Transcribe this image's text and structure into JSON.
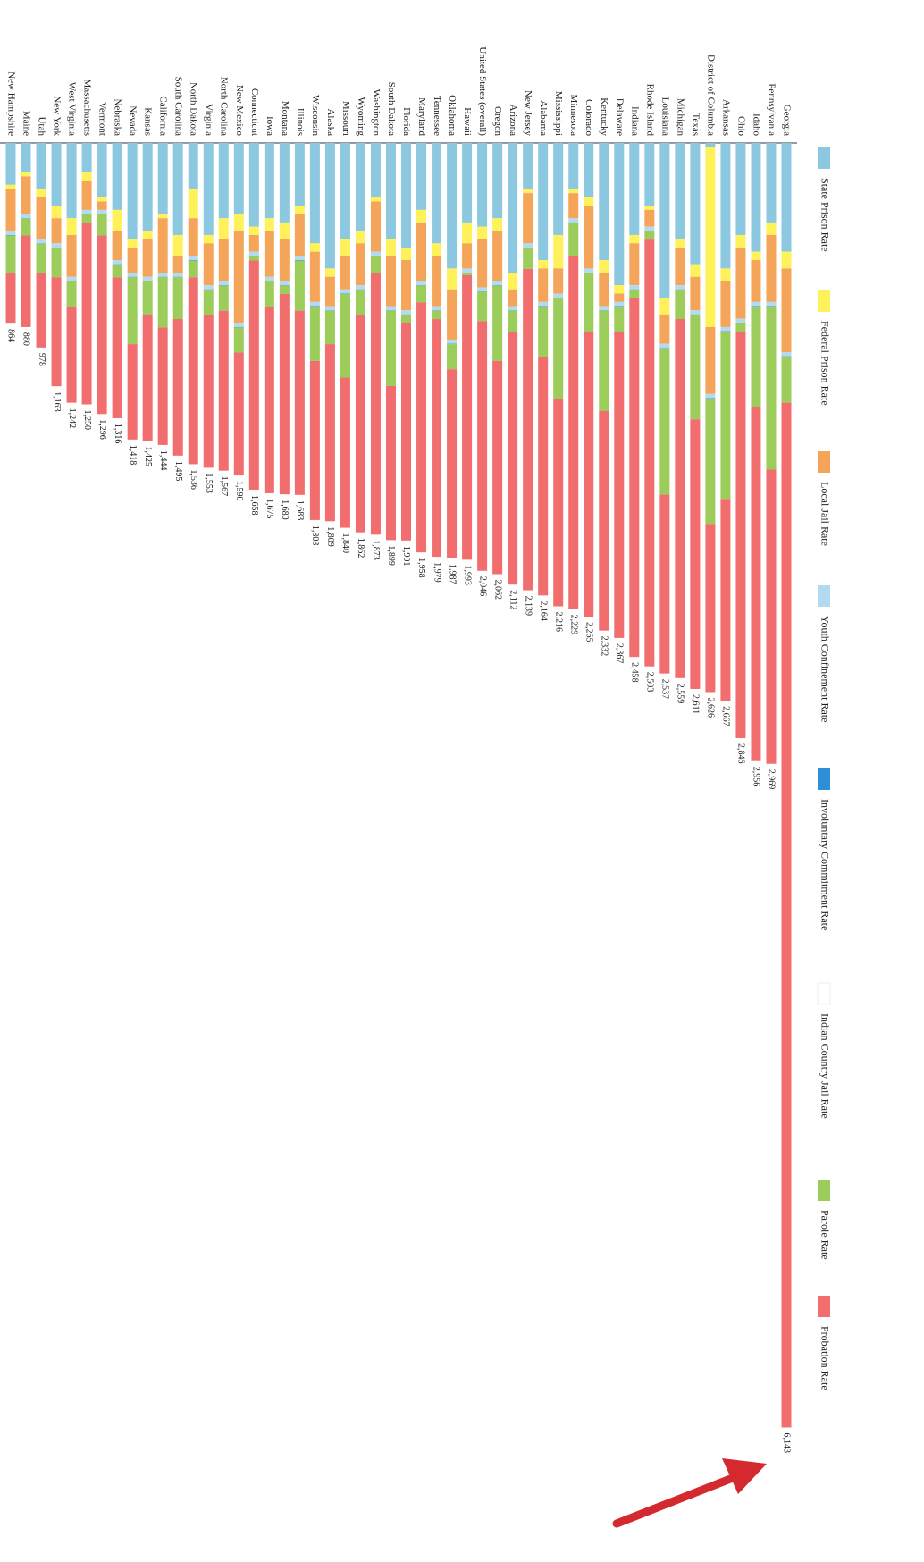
{
  "chart_data": {
    "type": "bar",
    "categories": [
      "Georgia",
      "Pennsylvania",
      "Idaho",
      "Ohio",
      "Arkansas",
      "District of Columbia",
      "Texas",
      "Michigan",
      "Louisiana",
      "Rhode Island",
      "Indiana",
      "Delaware",
      "Kentucky",
      "Colorado",
      "Minnesota",
      "Mississippi",
      "Alabama",
      "New Jersey",
      "Arizona",
      "Oregon",
      "United States (overall)",
      "Hawaii",
      "Oklahoma",
      "Tennessee",
      "Maryland",
      "Florida",
      "South Dakota",
      "Washington",
      "Wyoming",
      "Missouri",
      "Alaska",
      "Wisconsin",
      "Illinois",
      "Montana",
      "Iowa",
      "Connecticut",
      "New Mexico",
      "North Carolina",
      "Virginia",
      "North Dakota",
      "South Carolina",
      "California",
      "Kansas",
      "Nevada",
      "Nebraska",
      "Vermont",
      "Massachusetts",
      "West Virginia",
      "New York",
      "Utah",
      "Maine",
      "New Hampshire"
    ],
    "series": [
      {
        "name": "State Prison Rate",
        "color": "#8cc8e0",
        "values": [
          520,
          380,
          520,
          440,
          600,
          20,
          580,
          460,
          740,
          300,
          440,
          680,
          560,
          260,
          220,
          440,
          560,
          220,
          620,
          360,
          400,
          380,
          600,
          480,
          320,
          500,
          460,
          260,
          420,
          460,
          600,
          480,
          300,
          380,
          360,
          400,
          340,
          360,
          440,
          220,
          440,
          340,
          420,
          460,
          320,
          260,
          140,
          360,
          300,
          220,
          140,
          200
        ]
      },
      {
        "name": "Federal Prison Rate",
        "color": "#fff15a",
        "values": [
          80,
          60,
          40,
          60,
          60,
          860,
          60,
          40,
          80,
          20,
          40,
          40,
          60,
          40,
          20,
          160,
          40,
          20,
          80,
          60,
          60,
          100,
          100,
          60,
          60,
          60,
          80,
          20,
          60,
          80,
          40,
          40,
          40,
          80,
          60,
          40,
          80,
          100,
          40,
          140,
          100,
          20,
          40,
          40,
          100,
          20,
          40,
          80,
          60,
          40,
          20,
          20
        ]
      },
      {
        "name": "Local Jail Rate",
        "color": "#f4a55a",
        "values": [
          400,
          320,
          200,
          340,
          220,
          320,
          160,
          180,
          140,
          80,
          200,
          40,
          160,
          300,
          120,
          120,
          160,
          240,
          80,
          240,
          230,
          120,
          240,
          240,
          280,
          240,
          240,
          240,
          200,
          160,
          140,
          240,
          200,
          200,
          220,
          80,
          440,
          200,
          200,
          180,
          80,
          260,
          180,
          120,
          140,
          40,
          140,
          200,
          120,
          200,
          180,
          200
        ]
      },
      {
        "name": "Youth Confinement Rate",
        "color": "#b4daf2",
        "values": [
          20,
          20,
          20,
          20,
          20,
          20,
          20,
          20,
          20,
          20,
          20,
          20,
          20,
          20,
          20,
          20,
          20,
          20,
          20,
          20,
          20,
          20,
          20,
          20,
          20,
          20,
          20,
          20,
          20,
          20,
          20,
          20,
          20,
          20,
          20,
          20,
          20,
          20,
          20,
          20,
          20,
          20,
          20,
          20,
          20,
          20,
          20,
          20,
          20,
          20,
          20,
          20
        ]
      },
      {
        "name": "Involuntary Commitment Rate",
        "color": "#2d8fd8",
        "values": [
          2,
          2,
          2,
          2,
          2,
          2,
          2,
          2,
          2,
          2,
          2,
          2,
          2,
          2,
          2,
          2,
          2,
          2,
          2,
          2,
          2,
          2,
          2,
          2,
          2,
          2,
          2,
          2,
          2,
          2,
          2,
          2,
          2,
          2,
          2,
          2,
          2,
          2,
          2,
          2,
          2,
          2,
          2,
          2,
          2,
          2,
          2,
          2,
          2,
          2,
          2,
          2
        ]
      },
      {
        "name": "Indian Country Jail Rate",
        "color": "#ffffff",
        "values": [
          0,
          0,
          0,
          0,
          0,
          0,
          0,
          0,
          0,
          0,
          0,
          0,
          0,
          0,
          0,
          0,
          0,
          0,
          0,
          0,
          0,
          0,
          0,
          0,
          0,
          0,
          0,
          0,
          0,
          0,
          0,
          0,
          0,
          0,
          0,
          0,
          0,
          0,
          0,
          0,
          0,
          0,
          0,
          0,
          0,
          0,
          0,
          0,
          0,
          0,
          0,
          0
        ]
      },
      {
        "name": "Parole Rate",
        "color": "#9ccc5a",
        "values": [
          220,
          780,
          480,
          40,
          800,
          600,
          500,
          140,
          700,
          40,
          40,
          120,
          480,
          280,
          160,
          480,
          240,
          100,
          100,
          360,
          140,
          10,
          120,
          40,
          80,
          40,
          360,
          80,
          120,
          400,
          160,
          260,
          240,
          40,
          120,
          20,
          120,
          120,
          120,
          80,
          200,
          240,
          160,
          320,
          60,
          100,
          40,
          120,
          140,
          140,
          80,
          180
        ]
      },
      {
        "name": "Probation Rate",
        "color": "#f26d6d",
        "values": [
          4901,
          1407,
          1694,
          1944,
          965,
          804,
          1289,
          1717,
          855,
          2041,
          1716,
          1465,
          1050,
          1363,
          1687,
          994,
          1142,
          1537,
          1210,
          1020,
          1194,
          1361,
          905,
          1137,
          1196,
          1039,
          737,
          1251,
          1040,
          718,
          847,
          761,
          881,
          958,
          893,
          1096,
          588,
          765,
          731,
          894,
          653,
          562,
          603,
          456,
          674,
          854,
          868,
          460,
          521,
          356,
          438,
          242
        ]
      }
    ],
    "totals": [
      6143,
      2969,
      2956,
      2846,
      2667,
      2626,
      2611,
      2559,
      2537,
      2503,
      2458,
      2367,
      2332,
      2265,
      2229,
      2216,
      2164,
      2139,
      2112,
      2062,
      2046,
      1993,
      1987,
      1979,
      1958,
      1901,
      1899,
      1873,
      1862,
      1840,
      1809,
      1803,
      1683,
      1680,
      1675,
      1658,
      1590,
      1567,
      1553,
      1536,
      1495,
      1444,
      1425,
      1418,
      1316,
      1296,
      1250,
      1242,
      1163,
      978,
      880,
      864
    ],
    "total_labels": [
      "6,143",
      "2,969",
      "2,956",
      "2,846",
      "2,667",
      "2,626",
      "2,611",
      "2,559",
      "2,537",
      "2,503",
      "2,458",
      "2,367",
      "2,332",
      "2,265",
      "2,229",
      "2,216",
      "2,164",
      "2,139",
      "2,112",
      "2,062",
      "2,046",
      "1,993",
      "1,987",
      "1,979",
      "1,958",
      "1,901",
      "1,899",
      "1,873",
      "1,862",
      "1,840",
      "1,809",
      "1,803",
      "1,683",
      "1,680",
      "1,675",
      "1,658",
      "1,590",
      "1,567",
      "1,553",
      "1,536",
      "1,495",
      "1,444",
      "1,425",
      "1,418",
      "1,316",
      "1,296",
      "1,250",
      "1,242",
      "1,163",
      "978",
      "880",
      "864"
    ]
  }
}
